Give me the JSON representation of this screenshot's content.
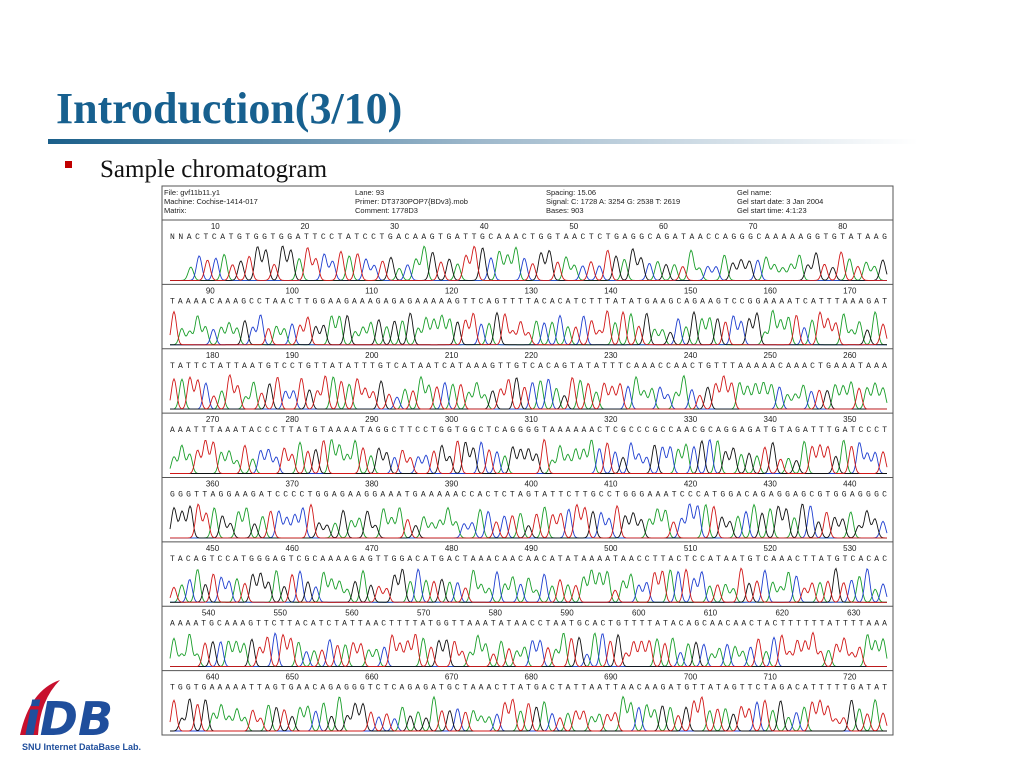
{
  "header": {
    "title": "Introduction(3/10)"
  },
  "bullets": [
    "Sample chromatogram"
  ],
  "chromatogram": {
    "info": [
      [
        "File: gvf11b11.y1",
        "Machine: Cochise-1414-017",
        "Matrix:"
      ],
      [
        "Lane: 93",
        "Primer: DT3730POP7{BDv3}.mob",
        "Comment: 1778D3"
      ],
      [
        "Spacing: 15.06",
        "Signal:  C: 1728  A: 3254  G: 2538  T: 2619",
        "Bases: 903"
      ],
      [
        "Gel name:",
        "Gel start date:  3 Jan 2004",
        "Gel start time:  4:1:23"
      ]
    ],
    "rows": [
      {
        "positions": [
          10,
          20,
          30,
          40,
          50,
          60,
          70,
          80
        ],
        "sequence": "NNACTCATGTGGTGGATTCCTATCCTGACAAGTGATTGCAAACTGGTAACTCTGAGGCAGATAACCAGGGCAAAAAGGTGTATAAG"
      },
      {
        "positions": [
          90,
          100,
          110,
          120,
          130,
          140,
          150,
          160,
          170
        ],
        "sequence": "TAAAACAAAGCCTAACTTGGAAGAAAGAGAGAAAAAGTTCAGTTTTACACATCTTTATATGAAGCAGAAGTCCGGAAAATCATTTAAAGAT"
      },
      {
        "positions": [
          180,
          190,
          200,
          210,
          220,
          230,
          240,
          250,
          260
        ],
        "sequence": "TATTCTATTAATGTCCTGTTATATTTGTCATAATCATAAAGTTGTCACAGTATATTTCAAACCAACTGTTTAAAAACAAACTGAAATAAA"
      },
      {
        "positions": [
          270,
          280,
          290,
          300,
          310,
          320,
          330,
          340,
          350
        ],
        "sequence": "AAATTTAAATACCCTTATGTAAAATAGGCTTCCTGGTGGCTCAGGGGTAAAAAACTCGCCCGCCAACGCAGGAGATGTAGATTTGATCCCT"
      },
      {
        "positions": [
          360,
          370,
          380,
          390,
          400,
          410,
          420,
          430,
          440
        ],
        "sequence": "GGGTTAGGAAGATCCCCTGGAGAAGGAAATGAAAAACCACTCTAGTATTCTTGCCTGGGAAATCCCATGGACAGAGGAGCGTGGAGGGC"
      },
      {
        "positions": [
          450,
          460,
          470,
          480,
          490,
          500,
          510,
          520,
          530
        ],
        "sequence": "TACAGTCCATGGGAGTCGCAAAAGAGTTGGACATGACTAAACAACAACATATAAAATAACCTTACTCCATAATGTCAAACTTATGTCACAC"
      },
      {
        "positions": [
          540,
          550,
          560,
          570,
          580,
          590,
          600,
          610,
          620,
          630
        ],
        "sequence": "AAAATGCAAAGTTCTTACATCTATTAACTTTTATGGTTAAATATAACCTAATGCACTGTTTTATACAGCAACAACTACTTTTTTATTTTAAA"
      },
      {
        "positions": [
          640,
          650,
          660,
          670,
          680,
          690,
          700,
          710,
          720
        ],
        "sequence": "TGGTGAAAAATTAGTGAACAGAGGGTCTCAGAGATGCTAAACTTATGACTATTAATTAACAAGATGTTATAGTTCTAGACATTTTTGATAT"
      }
    ]
  },
  "logo": {
    "text": "iDB",
    "caption": "SNU Internet DataBase Lab."
  }
}
